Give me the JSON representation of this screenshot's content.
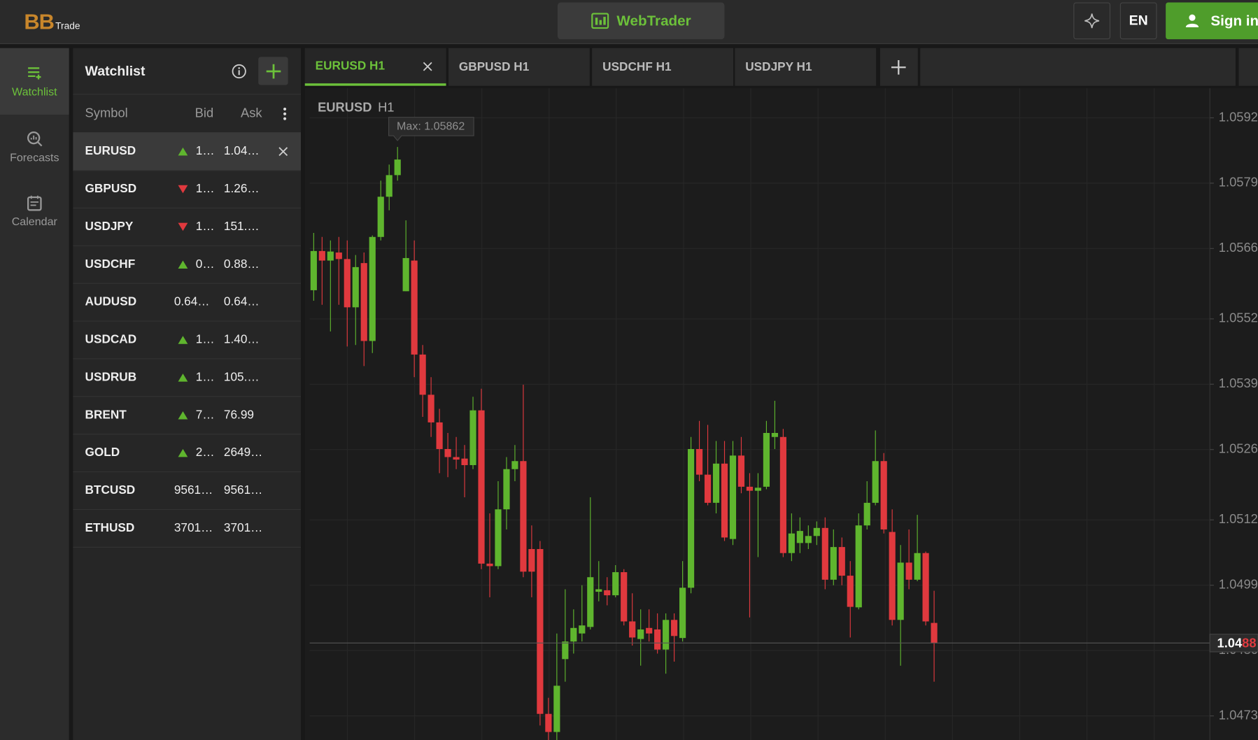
{
  "header": {
    "logo_main": "BB",
    "logo_sub": "Trade",
    "app_button": "WebTrader",
    "language": "EN",
    "sign_in": "Sign in"
  },
  "sidebar": {
    "items": [
      "Watchlist",
      "Forecasts",
      "Calendar"
    ],
    "active": 0
  },
  "watchlist": {
    "title": "Watchlist",
    "columns": [
      "Symbol",
      "Bid",
      "Ask"
    ],
    "selected": 0,
    "rows": [
      {
        "symbol": "EURUSD",
        "direction": "up",
        "bid": "1…",
        "ask": "1.04…"
      },
      {
        "symbol": "GBPUSD",
        "direction": "down",
        "bid": "1…",
        "ask": "1.26…"
      },
      {
        "symbol": "USDJPY",
        "direction": "down",
        "bid": "1…",
        "ask": "151.…"
      },
      {
        "symbol": "USDCHF",
        "direction": "up",
        "bid": "0…",
        "ask": "0.88…"
      },
      {
        "symbol": "AUDUSD",
        "direction": null,
        "bid": "0.64…",
        "ask": "0.64…"
      },
      {
        "symbol": "USDCAD",
        "direction": "up",
        "bid": "1…",
        "ask": "1.40…"
      },
      {
        "symbol": "USDRUB",
        "direction": "up",
        "bid": "1…",
        "ask": "105.…"
      },
      {
        "symbol": "BRENT",
        "direction": "up",
        "bid": "7…",
        "ask": "76.99"
      },
      {
        "symbol": "GOLD",
        "direction": "up",
        "bid": "2…",
        "ask": "2649…"
      },
      {
        "symbol": "BTCUSD",
        "direction": null,
        "bid": "9561…",
        "ask": "9561…"
      },
      {
        "symbol": "ETHUSD",
        "direction": null,
        "bid": "3701…",
        "ask": "3701…"
      }
    ]
  },
  "tabs": {
    "items": [
      "EURUSD H1",
      "GBPUSD H1",
      "USDCHF H1",
      "USDJPY H1"
    ],
    "active": 0
  },
  "chart_data": {
    "type": "candlestick",
    "title": "EURUSD",
    "subtitle": "H1",
    "up_color": "#5fb52e",
    "down_color": "#e0393e",
    "grid": true,
    "ylim": [
      1.04682,
      1.05971
    ],
    "yticks": [
      1.0592,
      1.0579,
      1.0566,
      1.0552,
      1.0539,
      1.0526,
      1.0512,
      1.0499,
      1.0486,
      1.0473
    ],
    "annotation": "Max: 1.05862",
    "current_price": {
      "value": 1.04875,
      "label": [
        "1.04",
        "88"
      ]
    },
    "open": [
      1.05577,
      1.05655,
      1.05636,
      1.05652,
      1.05639,
      1.05543,
      1.05631,
      1.05476,
      1.05683,
      1.05763,
      1.05806,
      1.05575,
      1.05636,
      1.05449,
      1.05369,
      1.05314,
      1.05261,
      1.05245,
      1.05242,
      1.05229,
      1.05338,
      1.05033,
      1.05028,
      1.05141,
      1.05221,
      1.05237,
      1.05062,
      1.05062,
      1.04734,
      1.04698,
      1.04843,
      1.04878,
      1.04894,
      1.04907,
      1.04977,
      1.0498,
      1.0497,
      1.05016,
      1.04918,
      1.04883,
      1.04905,
      1.04902,
      1.04862,
      1.04921,
      1.04885,
      1.04985,
      1.05261,
      1.0521,
      1.05154,
      1.05232,
      1.05082,
      1.05248,
      1.05186,
      1.05178,
      1.05186,
      1.05285,
      1.05285,
      1.05054,
      1.05074,
      1.05074,
      1.05088,
      1.05104,
      1.05001,
      1.05066,
      1.05009,
      1.04946,
      1.05109,
      1.05154,
      1.05237,
      1.05096,
      1.04921,
      1.05035,
      1.05001,
      1.05054,
      1.04915
    ],
    "high": [
      1.05691,
      1.05683,
      1.05676,
      1.05683,
      1.05676,
      1.05647,
      1.05652,
      1.05686,
      1.05795,
      1.05827,
      1.05862,
      1.05716,
      1.05676,
      1.05468,
      1.05404,
      1.05341,
      1.05293,
      1.05285,
      1.05269,
      1.05365,
      1.05381,
      1.05133,
      1.05197,
      1.05245,
      1.05269,
      1.05389,
      1.05109,
      1.05078,
      1.04766,
      1.04894,
      1.04982,
      1.04942,
      1.0499,
      1.05165,
      1.05038,
      1.05006,
      1.0503,
      1.05022,
      1.04974,
      1.04942,
      1.04942,
      1.04934,
      1.04934,
      1.04934,
      1.05038,
      1.05285,
      1.05317,
      1.05309,
      1.05277,
      1.05277,
      1.05277,
      1.05285,
      1.05213,
      1.05213,
      1.05317,
      1.05357,
      1.05301,
      1.05133,
      1.05125,
      1.05109,
      1.05117,
      1.05125,
      1.05101,
      1.05085,
      1.05038,
      1.05133,
      1.05197,
      1.05298,
      1.05253,
      1.05141,
      1.0507,
      1.05101,
      1.0513,
      1.05057,
      1.04979
    ],
    "low": [
      1.05556,
      1.05548,
      1.05495,
      1.05548,
      1.05465,
      1.05468,
      1.05426,
      1.05452,
      1.05676,
      1.05736,
      1.05795,
      1.05575,
      1.05404,
      1.05325,
      1.05285,
      1.05213,
      1.05205,
      1.05221,
      1.05165,
      1.05221,
      1.05022,
      1.04966,
      1.05022,
      1.05101,
      1.05197,
      1.05006,
      1.04966,
      1.04711,
      1.04682,
      1.04682,
      1.04798,
      1.04854,
      1.04878,
      1.04902,
      1.04958,
      1.0495,
      1.04966,
      1.0491,
      1.0487,
      1.0483,
      1.04878,
      1.04854,
      1.04814,
      1.04838,
      1.04878,
      1.04974,
      1.05197,
      1.05149,
      1.05133,
      1.05078,
      1.0507,
      1.05173,
      1.04926,
      1.05046,
      1.05181,
      1.05261,
      1.05046,
      1.05038,
      1.05054,
      1.05062,
      1.0507,
      1.04982,
      1.0499,
      1.0499,
      1.04886,
      1.04942,
      1.05101,
      1.05149,
      1.05093,
      1.0491,
      1.0483,
      1.04982,
      1.04998,
      1.0491,
      1.04798
    ],
    "close": [
      1.05655,
      1.05636,
      1.05654,
      1.05639,
      1.05543,
      1.05623,
      1.05476,
      1.05683,
      1.05763,
      1.05806,
      1.05837,
      1.05641,
      1.05449,
      1.05369,
      1.05314,
      1.05261,
      1.05245,
      1.0524,
      1.05229,
      1.05338,
      1.05033,
      1.05028,
      1.05141,
      1.05221,
      1.05237,
      1.05017,
      1.05017,
      1.04734,
      1.04698,
      1.0479,
      1.04878,
      1.04905,
      1.0491,
      1.05006,
      1.04982,
      1.0497,
      1.05016,
      1.04918,
      1.04886,
      1.04902,
      1.04894,
      1.04862,
      1.04921,
      1.04889,
      1.04985,
      1.05261,
      1.0521,
      1.05154,
      1.05232,
      1.05085,
      1.05248,
      1.05186,
      1.05178,
      1.05184,
      1.05293,
      1.05293,
      1.05054,
      1.05093,
      1.05098,
      1.05088,
      1.05104,
      1.05001,
      1.05066,
      1.05009,
      1.04947,
      1.05109,
      1.05154,
      1.05237,
      1.05101,
      1.04921,
      1.05035,
      1.05001,
      1.05054,
      1.04918,
      1.04875
    ]
  }
}
